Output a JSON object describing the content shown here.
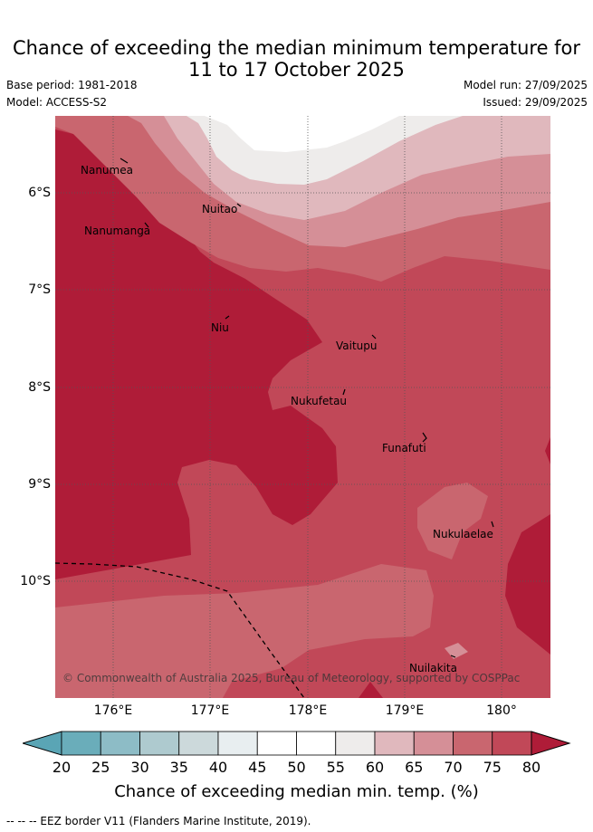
{
  "title": {
    "line1": "Chance of exceeding the median minimum temperature for",
    "line2": "11 to 17 October 2025"
  },
  "meta": {
    "base_period": "Base period: 1981-2018",
    "model": "Model: ACCESS-S2",
    "model_run": "Model run: 27/09/2025",
    "issued": "Issued: 29/09/2025"
  },
  "axes": {
    "lat_labels": [
      "6°S",
      "7°S",
      "8°S",
      "9°S",
      "10°S"
    ],
    "lon_labels": [
      "176°E",
      "177°E",
      "178°E",
      "179°E",
      "180°"
    ]
  },
  "places": [
    {
      "name": "Nanumea"
    },
    {
      "name": "Nuitao"
    },
    {
      "name": "Nanumanga"
    },
    {
      "name": "Niu"
    },
    {
      "name": "Vaitupu"
    },
    {
      "name": "Nukufetau"
    },
    {
      "name": "Funafuti"
    },
    {
      "name": "Nukulaelae"
    },
    {
      "name": "Nuilakita"
    }
  ],
  "copyright": "© Commonwealth of Australia 2025, Bureau of Meteorology, supported by COSPPac",
  "colorbar": {
    "ticks": [
      "20",
      "25",
      "30",
      "35",
      "40",
      "45",
      "50",
      "55",
      "60",
      "65",
      "70",
      "75",
      "80"
    ],
    "colors": [
      "#6aadba",
      "#8dbcc6",
      "#aecacf",
      "#ccd9db",
      "#e8eef0",
      "#ffffff",
      "#ffffff",
      "#eeeceb",
      "#e0b8bd",
      "#d58f97",
      "#c9666f",
      "#c14858",
      "#af1c38"
    ],
    "under_color": "#5aa5b5",
    "label": "Chance of exceeding median min. temp. (%)"
  },
  "legend": {
    "eez": "-- -- -- EEZ border V11 (Flanders Marine Institute, 2019)."
  }
}
